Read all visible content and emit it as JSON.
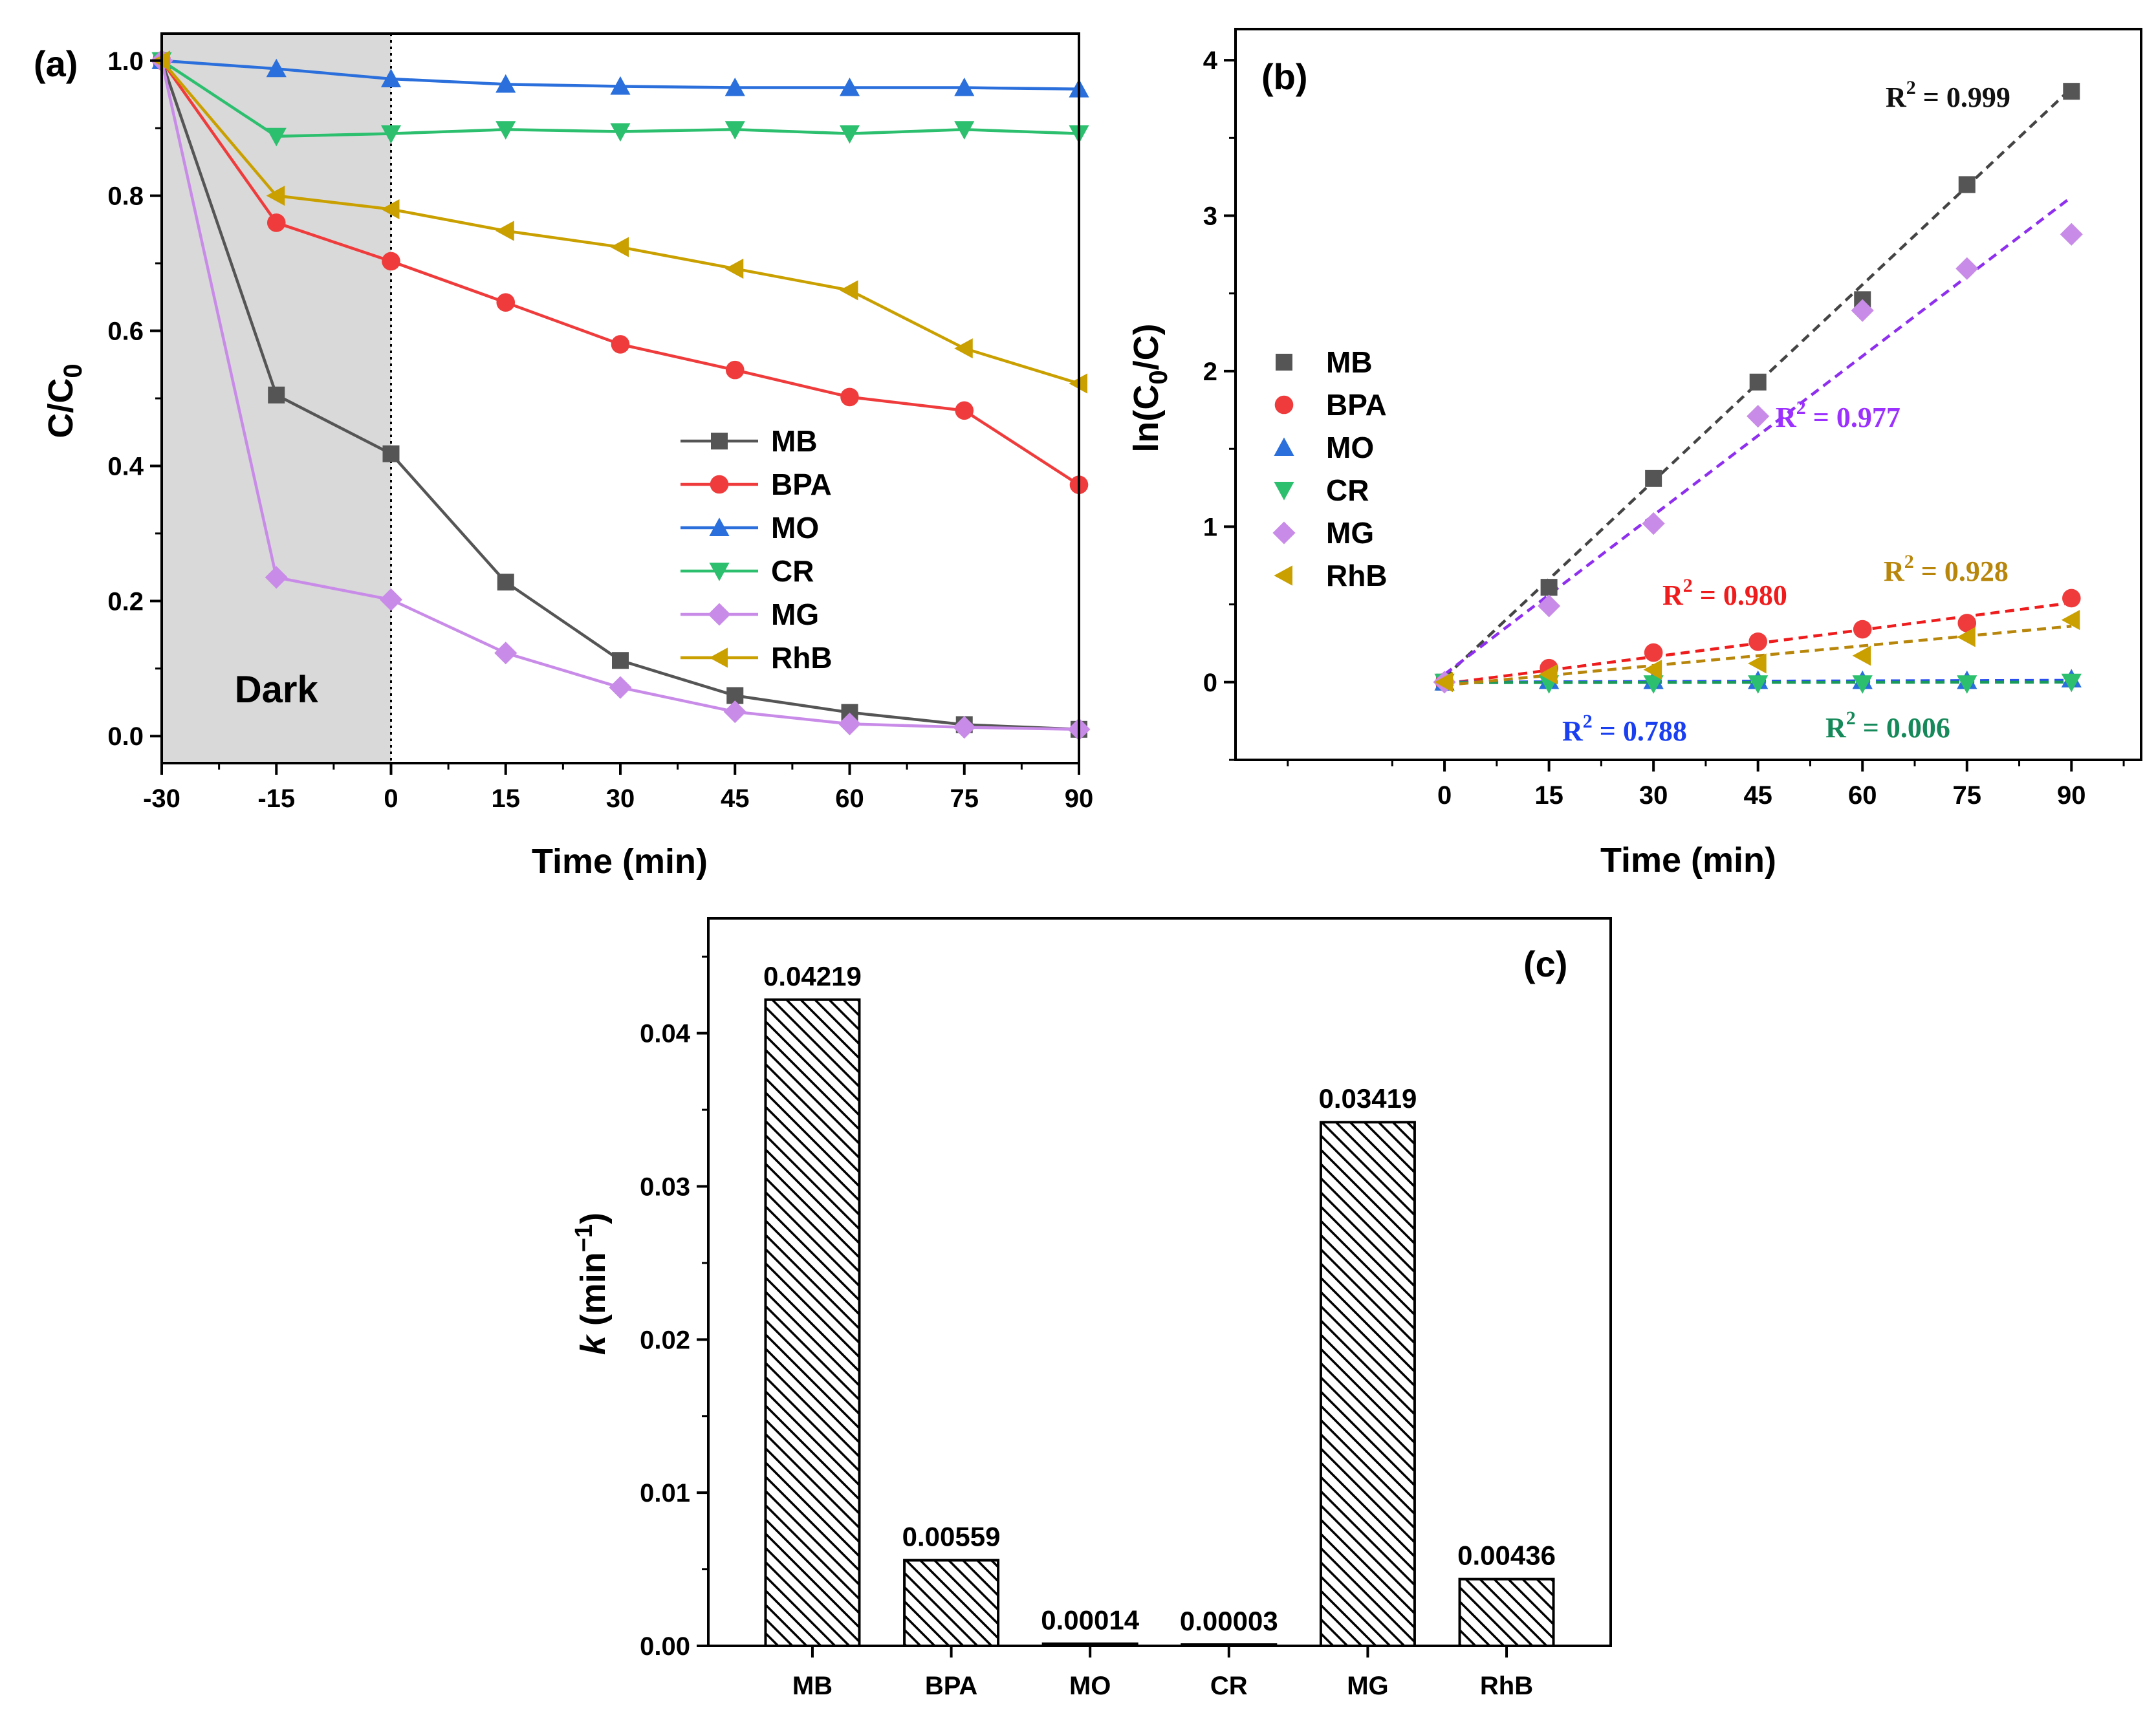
{
  "chart_data": [
    {
      "panel": "(a)",
      "type": "line",
      "xlabel": "Time (min)",
      "ylabel": "C/C0",
      "ylabel_main": "C/C",
      "ylabel_sub": "0",
      "xlim": [
        -30,
        90
      ],
      "ylim": [
        -0.04,
        1.04
      ],
      "xticks": [
        -30,
        -15,
        0,
        15,
        30,
        45,
        60,
        75,
        90
      ],
      "yticks": [
        0.0,
        0.2,
        0.4,
        0.6,
        0.8,
        1.0
      ],
      "shaded_region": {
        "from": -30,
        "to": 0,
        "label": "Dark"
      },
      "x": [
        -30,
        -15,
        0,
        15,
        30,
        45,
        60,
        75,
        90
      ],
      "series": [
        {
          "name": "MB",
          "color": "#555555",
          "marker": "square",
          "values": [
            1.0,
            0.505,
            0.418,
            0.228,
            0.112,
            0.06,
            0.035,
            0.017,
            0.01
          ]
        },
        {
          "name": "BPA",
          "color": "#ef3b3b",
          "marker": "circle",
          "values": [
            1.0,
            0.76,
            0.703,
            0.642,
            0.58,
            0.542,
            0.502,
            0.482,
            0.372
          ]
        },
        {
          "name": "MO",
          "color": "#2a6fdb",
          "marker": "triangle-up",
          "values": [
            1.0,
            0.988,
            0.973,
            0.965,
            0.962,
            0.96,
            0.96,
            0.96,
            0.958
          ]
        },
        {
          "name": "CR",
          "color": "#2bbf6e",
          "marker": "triangle-down",
          "values": [
            1.0,
            0.888,
            0.892,
            0.898,
            0.895,
            0.898,
            0.892,
            0.898,
            0.892
          ]
        },
        {
          "name": "MG",
          "color": "#c98be8",
          "marker": "diamond",
          "values": [
            1.0,
            0.235,
            0.202,
            0.123,
            0.072,
            0.036,
            0.018,
            0.013,
            0.01
          ]
        },
        {
          "name": "RhB",
          "color": "#c9a000",
          "marker": "triangle-left",
          "values": [
            1.0,
            0.8,
            0.78,
            0.748,
            0.724,
            0.692,
            0.66,
            0.574,
            0.522
          ]
        }
      ]
    },
    {
      "panel": "(b)",
      "type": "scatter",
      "xlabel": "Time (min)",
      "ylabel": "ln(C0/C)",
      "ylabel_pre": "ln(C",
      "ylabel_sub": "0",
      "ylabel_post": "/C)",
      "xlim": [
        -30,
        100
      ],
      "ylim": [
        -0.5,
        4.2
      ],
      "xticks": [
        0,
        15,
        30,
        45,
        60,
        75,
        90
      ],
      "yticks": [
        0,
        1,
        2,
        3,
        4
      ],
      "x": [
        0,
        15,
        30,
        45,
        60,
        75,
        90
      ],
      "series": [
        {
          "name": "MB",
          "color": "#555555",
          "fit_color": "#444444",
          "marker": "square",
          "values": [
            0,
            0.61,
            1.31,
            1.93,
            2.46,
            3.2,
            3.8
          ],
          "fit": [
            0.03,
            3.82
          ],
          "r2": "0.999"
        },
        {
          "name": "BPA",
          "color": "#ef3b3b",
          "fit_color": "#ee1c1c",
          "marker": "circle",
          "values": [
            0,
            0.09,
            0.19,
            0.26,
            0.34,
            0.38,
            0.54
          ],
          "fit": [
            -0.01,
            0.51
          ],
          "r2": "0.980"
        },
        {
          "name": "MO",
          "color": "#2a6fdb",
          "fit_color": "#2a4ff0",
          "marker": "triangle-up",
          "values": [
            0,
            0.01,
            0.01,
            0.01,
            0.01,
            0.01,
            0.02
          ],
          "fit": [
            0.0,
            0.012
          ],
          "r2": "0.788"
        },
        {
          "name": "CR",
          "color": "#2bbf6e",
          "fit_color": "#1a9a5a",
          "marker": "triangle-down",
          "values": [
            0,
            -0.01,
            -0.01,
            -0.01,
            -0.01,
            -0.01,
            0.0
          ],
          "fit": [
            -0.003,
            0.0
          ],
          "r2": "0.006"
        },
        {
          "name": "MG",
          "color": "#c98be8",
          "fit_color": "#8e2ff0",
          "marker": "diamond",
          "values": [
            0,
            0.49,
            1.02,
            1.71,
            2.39,
            2.66,
            2.88
          ],
          "fit": [
            0.05,
            3.12
          ],
          "r2": "0.977"
        },
        {
          "name": "RhB",
          "color": "#c9a000",
          "fit_color": "#b8860b",
          "marker": "triangle-left",
          "values": [
            0,
            0.05,
            0.08,
            0.12,
            0.17,
            0.29,
            0.4
          ],
          "fit": [
            -0.02,
            0.36
          ],
          "r2": "0.928"
        }
      ],
      "annotation_prefix": "R",
      "annotation_sup": "2",
      "annotation_eq": " = "
    },
    {
      "panel": "(c)",
      "type": "bar",
      "categories": [
        "MB",
        "BPA",
        "MO",
        "CR",
        "MG",
        "RhB"
      ],
      "values": [
        0.04219,
        0.00559,
        0.00014,
        3e-05,
        0.03419,
        0.00436
      ],
      "labels": [
        "0.04219",
        "0.00559",
        "0.00014",
        "0.00003",
        "0.03419",
        "0.00436"
      ],
      "ylabel": "k (min-1)",
      "ylabel_k": "k",
      "ylabel_unit": " (min",
      "ylabel_sup": "−1",
      "ylabel_close": ")",
      "ylim": [
        0,
        0.0475
      ],
      "yticks": [
        0.0,
        0.01,
        0.02,
        0.03,
        0.04
      ],
      "ytick_labels": [
        "0.00",
        "0.01",
        "0.02",
        "0.03",
        "0.04"
      ],
      "pattern": "diagonal-hatch"
    }
  ]
}
